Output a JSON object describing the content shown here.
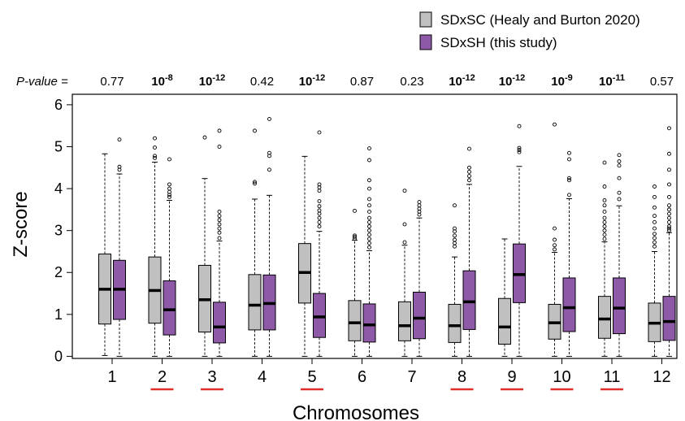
{
  "chart_data": {
    "type": "box",
    "xlabel": "Chromosomes",
    "ylabel": "Z-score",
    "ylim": [
      -0.05,
      6.25
    ],
    "yticks": [
      0,
      1,
      2,
      3,
      4,
      5,
      6
    ],
    "grid": false,
    "legend_position": "top-right",
    "pvalue_label": "P-value =",
    "categories": [
      "1",
      "2",
      "3",
      "4",
      "5",
      "6",
      "7",
      "8",
      "9",
      "10",
      "11",
      "12"
    ],
    "underlined_categories": [
      "2",
      "3",
      "5",
      "8",
      "9",
      "10",
      "11"
    ],
    "underline_color": "#e0302b",
    "pvalues": [
      {
        "display": "0.77",
        "base": "0.77",
        "exp": "",
        "bold": false
      },
      {
        "display": "10^-8",
        "base": "10",
        "exp": "-8",
        "bold": true
      },
      {
        "display": "10^-12",
        "base": "10",
        "exp": "-12",
        "bold": true
      },
      {
        "display": "0.42",
        "base": "0.42",
        "exp": "",
        "bold": false
      },
      {
        "display": "10^-12",
        "base": "10",
        "exp": "-12",
        "bold": true
      },
      {
        "display": "0.87",
        "base": "0.87",
        "exp": "",
        "bold": false
      },
      {
        "display": "0.23",
        "base": "0.23",
        "exp": "",
        "bold": false
      },
      {
        "display": "10^-12",
        "base": "10",
        "exp": "-12",
        "bold": true
      },
      {
        "display": "10^-12",
        "base": "10",
        "exp": "-12",
        "bold": true
      },
      {
        "display": "10^-9",
        "base": "10",
        "exp": "-9",
        "bold": true
      },
      {
        "display": "10^-11",
        "base": "10",
        "exp": "-11",
        "bold": true
      },
      {
        "display": "0.57",
        "base": "0.57",
        "exp": "",
        "bold": false
      }
    ],
    "series": [
      {
        "name": "SDxSC (Healy and Burton 2020)",
        "color": "#c0c0c0",
        "boxes": [
          {
            "min": 0.02,
            "q1": 0.77,
            "median": 1.6,
            "q3": 2.44,
            "max": 4.83,
            "outliers": []
          },
          {
            "min": 0.0,
            "q1": 0.79,
            "median": 1.57,
            "q3": 2.37,
            "max": 4.63,
            "outliers": [
              4.73,
              4.78,
              4.98,
              5.2
            ]
          },
          {
            "min": 0.0,
            "q1": 0.58,
            "median": 1.35,
            "q3": 2.17,
            "max": 4.24,
            "outliers": [
              5.22
            ]
          },
          {
            "min": 0.0,
            "q1": 0.63,
            "median": 1.22,
            "q3": 1.95,
            "max": 3.75,
            "outliers": [
              4.12,
              4.16,
              5.38
            ]
          },
          {
            "min": 0.0,
            "q1": 1.27,
            "median": 2.0,
            "q3": 2.69,
            "max": 4.77,
            "outliers": []
          },
          {
            "min": 0.0,
            "q1": 0.37,
            "median": 0.8,
            "q3": 1.33,
            "max": 2.77,
            "outliers": [
              2.81,
              2.85,
              2.88,
              3.47
            ]
          },
          {
            "min": 0.0,
            "q1": 0.37,
            "median": 0.73,
            "q3": 1.3,
            "max": 2.65,
            "outliers": [
              2.72,
              3.15,
              3.95
            ]
          },
          {
            "min": 0.0,
            "q1": 0.33,
            "median": 0.73,
            "q3": 1.24,
            "max": 2.37,
            "outliers": [
              2.62,
              2.7,
              2.78,
              2.88,
              2.98,
              3.05,
              3.6
            ]
          },
          {
            "min": 0.0,
            "q1": 0.29,
            "median": 0.7,
            "q3": 1.38,
            "max": 2.8,
            "outliers": []
          },
          {
            "min": 0.0,
            "q1": 0.41,
            "median": 0.8,
            "q3": 1.24,
            "max": 2.48,
            "outliers": [
              2.55,
              2.65,
              2.78,
              3.05,
              5.53
            ]
          },
          {
            "min": 0.0,
            "q1": 0.43,
            "median": 0.89,
            "q3": 1.43,
            "max": 2.73,
            "outliers": [
              2.8,
              2.9,
              3.0,
              3.1,
              3.2,
              3.3,
              3.45,
              3.6,
              3.72,
              4.05,
              4.62
            ]
          },
          {
            "min": 0.0,
            "q1": 0.35,
            "median": 0.79,
            "q3": 1.27,
            "max": 2.5,
            "outliers": [
              2.62,
              2.72,
              2.82,
              2.92,
              3.05,
              3.2,
              3.35,
              3.55,
              3.8,
              4.05
            ]
          }
        ]
      },
      {
        "name": "SDxSH (this study)",
        "color": "#8e5aa8",
        "boxes": [
          {
            "min": 0.0,
            "q1": 0.88,
            "median": 1.6,
            "q3": 2.29,
            "max": 4.35,
            "outliers": [
              4.45,
              4.52,
              5.17
            ]
          },
          {
            "min": 0.0,
            "q1": 0.51,
            "median": 1.11,
            "q3": 1.8,
            "max": 3.72,
            "outliers": [
              3.8,
              3.85,
              3.92,
              4.0,
              4.1,
              4.7
            ]
          },
          {
            "min": 0.0,
            "q1": 0.32,
            "median": 0.7,
            "q3": 1.29,
            "max": 2.75,
            "outliers": [
              2.82,
              2.95,
              3.05,
              3.15,
              3.25,
              3.35,
              3.45,
              5.0,
              5.38
            ]
          },
          {
            "min": 0.0,
            "q1": 0.63,
            "median": 1.26,
            "q3": 1.94,
            "max": 3.84,
            "outliers": [
              4.45,
              4.78,
              4.85,
              5.66
            ]
          },
          {
            "min": 0.0,
            "q1": 0.45,
            "median": 0.94,
            "q3": 1.5,
            "max": 2.98,
            "outliers": [
              3.1,
              3.2,
              3.3,
              3.4,
              3.48,
              3.58,
              3.7,
              3.95,
              4.03,
              4.1,
              5.34
            ]
          },
          {
            "min": 0.0,
            "q1": 0.34,
            "median": 0.75,
            "q3": 1.25,
            "max": 2.52,
            "outliers": [
              2.6,
              2.7,
              2.8,
              2.9,
              3.0,
              3.1,
              3.2,
              3.3,
              3.45,
              3.6,
              3.75,
              4.0,
              4.2,
              4.68,
              4.96
            ]
          },
          {
            "min": 0.0,
            "q1": 0.42,
            "median": 0.91,
            "q3": 1.53,
            "max": 3.3,
            "outliers": [
              3.38,
              3.45,
              3.52,
              3.6,
              3.68
            ]
          },
          {
            "min": 0.0,
            "q1": 0.64,
            "median": 1.3,
            "q3": 2.04,
            "max": 4.1,
            "outliers": [
              4.2,
              4.3,
              4.4,
              4.5,
              4.95
            ]
          },
          {
            "min": 0.0,
            "q1": 1.28,
            "median": 1.95,
            "q3": 2.68,
            "max": 4.53,
            "outliers": [
              4.87,
              4.92,
              4.97,
              5.49
            ]
          },
          {
            "min": 0.0,
            "q1": 0.59,
            "median": 1.16,
            "q3": 1.87,
            "max": 3.76,
            "outliers": [
              3.85,
              4.2,
              4.25,
              4.7,
              4.85
            ]
          },
          {
            "min": 0.0,
            "q1": 0.54,
            "median": 1.15,
            "q3": 1.87,
            "max": 3.59,
            "outliers": [
              3.75,
              3.9,
              4.25,
              4.55,
              4.65,
              4.8
            ]
          },
          {
            "min": 0.0,
            "q1": 0.38,
            "median": 0.83,
            "q3": 1.43,
            "max": 2.95,
            "outliers": [
              3.0,
              3.05,
              3.1,
              3.2,
              3.3,
              3.4,
              3.5,
              3.6,
              3.8,
              4.1,
              4.45,
              4.83,
              5.44
            ]
          }
        ]
      }
    ]
  }
}
